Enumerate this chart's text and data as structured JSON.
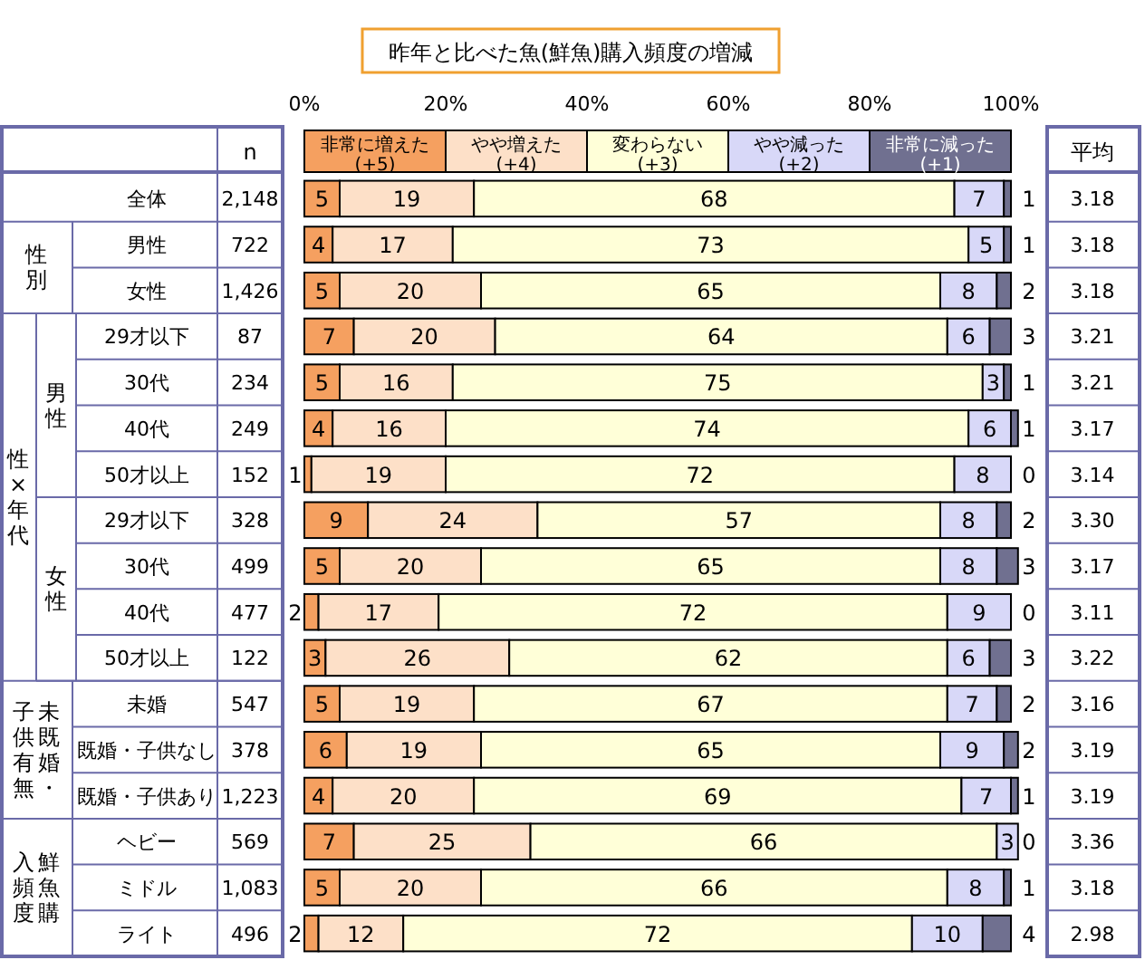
{
  "chart_data": {
    "type": "bar",
    "orientation": "horizontal",
    "stacked": true,
    "title": "昨年と比べた魚(鮮魚)購入頻度の増減",
    "categories": [
      "全体",
      "男性",
      "女性",
      "29才以下",
      "30代",
      "40代",
      "50才以上",
      "29才以下",
      "30代",
      "40代",
      "50才以上",
      "未婚",
      "既婚・子供なし",
      "既婚・子供あり",
      "ヘビー",
      "ミドル",
      "ライト"
    ],
    "series": [
      {
        "name": "非常に増えた (+5)",
        "color": "#f5a060",
        "values": [
          5,
          4,
          5,
          7,
          5,
          4,
          1,
          9,
          5,
          2,
          3,
          5,
          6,
          4,
          7,
          5,
          2
        ]
      },
      {
        "name": "やや増えた (+4)",
        "color": "#fde0c8",
        "values": [
          19,
          17,
          20,
          20,
          16,
          16,
          19,
          24,
          20,
          17,
          26,
          19,
          19,
          20,
          25,
          20,
          12
        ]
      },
      {
        "name": "変わらない (+3)",
        "color": "#ffffd8",
        "values": [
          68,
          73,
          65,
          64,
          75,
          74,
          72,
          57,
          65,
          72,
          62,
          67,
          65,
          69,
          66,
          66,
          72
        ]
      },
      {
        "name": "やや減った (+2)",
        "color": "#d8d8f8",
        "values": [
          7,
          5,
          8,
          6,
          3,
          6,
          8,
          8,
          8,
          9,
          6,
          7,
          9,
          7,
          3,
          8,
          10
        ]
      },
      {
        "name": "非常に減った (+1)",
        "color": "#707090",
        "values": [
          1,
          1,
          2,
          3,
          1,
          1,
          0,
          2,
          3,
          0,
          3,
          2,
          2,
          1,
          0,
          1,
          4
        ]
      }
    ],
    "xlim": [
      0,
      101
    ],
    "xticks": [
      {
        "value": 0,
        "label": "0%"
      },
      {
        "value": 20,
        "label": "20%"
      },
      {
        "value": 40,
        "label": "40%"
      },
      {
        "value": 60,
        "label": "60%"
      },
      {
        "value": 80,
        "label": "80%"
      },
      {
        "value": 100,
        "label": "100%"
      }
    ],
    "legend": "top",
    "data_labels": true,
    "annotations": [
      "n",
      "平均",
      "2,148",
      "722",
      "1,426",
      "87",
      "234",
      "249",
      "152",
      "328",
      "499",
      "477",
      "122",
      "547",
      "378",
      "1,223",
      "569",
      "1,083",
      "496",
      "3.18",
      "3.18",
      "3.18",
      "3.21",
      "3.21",
      "3.17",
      "3.14",
      "3.30",
      "3.17",
      "3.11",
      "3.22",
      "3.16",
      "3.19",
      "3.19",
      "3.36",
      "3.18",
      "2.98",
      "性別",
      "性×年代",
      "男性",
      "女性",
      "未既婚・子供有無",
      "鮮魚購入頻度"
    ]
  }
}
